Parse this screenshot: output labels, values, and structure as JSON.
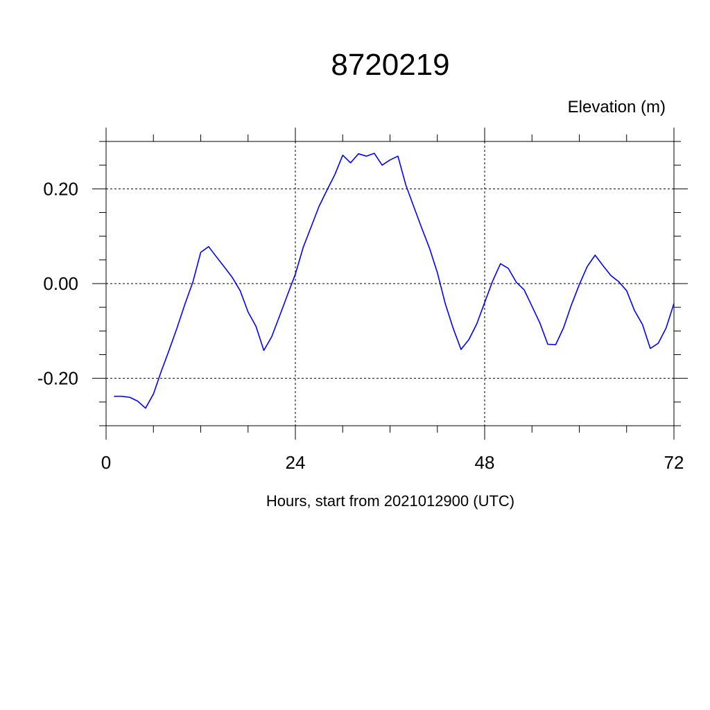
{
  "chart_data": {
    "type": "line",
    "title": "8720219",
    "ylabel": "Elevation (m)",
    "xlabel": "Hours, start from 2021012900 (UTC)",
    "xlim": [
      0,
      72
    ],
    "ylim": [
      -0.3,
      0.3
    ],
    "xticks": [
      0,
      24,
      48,
      72
    ],
    "xtick_labels": [
      "0",
      "24",
      "48",
      "72"
    ],
    "yticks": [
      -0.2,
      0.0,
      0.2
    ],
    "ytick_labels": [
      "-0.20",
      "0.00",
      "0.20"
    ],
    "grid": true,
    "series": [
      {
        "color": "#0000ff",
        "x": [
          1,
          2,
          3,
          4,
          5,
          6,
          7,
          8,
          9,
          10,
          11,
          12,
          13,
          14,
          15,
          16,
          17,
          18,
          19,
          20,
          21,
          22,
          23,
          24,
          25,
          26,
          27,
          28,
          29,
          30,
          31,
          32,
          33,
          34,
          35,
          36,
          37,
          38,
          39,
          40,
          41,
          42,
          43,
          44,
          45,
          46,
          47,
          48,
          49,
          50,
          51,
          52,
          53,
          54,
          55,
          56,
          57,
          58,
          59,
          60,
          61,
          62,
          63,
          64,
          65,
          66,
          67,
          68,
          69,
          70,
          71,
          72
        ],
        "y": [
          -0.238,
          -0.238,
          -0.24,
          -0.248,
          -0.263,
          -0.233,
          -0.185,
          -0.14,
          -0.093,
          -0.043,
          0.003,
          0.066,
          0.078,
          0.056,
          0.035,
          0.013,
          -0.015,
          -0.06,
          -0.09,
          -0.141,
          -0.112,
          -0.068,
          -0.024,
          0.02,
          0.077,
          0.12,
          0.163,
          0.197,
          0.23,
          0.271,
          0.255,
          0.274,
          0.269,
          0.275,
          0.25,
          0.261,
          0.269,
          0.208,
          0.163,
          0.118,
          0.075,
          0.023,
          -0.042,
          -0.094,
          -0.139,
          -0.118,
          -0.085,
          -0.04,
          0.005,
          0.042,
          0.032,
          0.003,
          -0.013,
          -0.048,
          -0.083,
          -0.128,
          -0.129,
          -0.093,
          -0.045,
          -0.002,
          0.036,
          0.06,
          0.038,
          0.017,
          0.004,
          -0.015,
          -0.057,
          -0.086,
          -0.137,
          -0.126,
          -0.094,
          -0.042
        ]
      }
    ]
  }
}
